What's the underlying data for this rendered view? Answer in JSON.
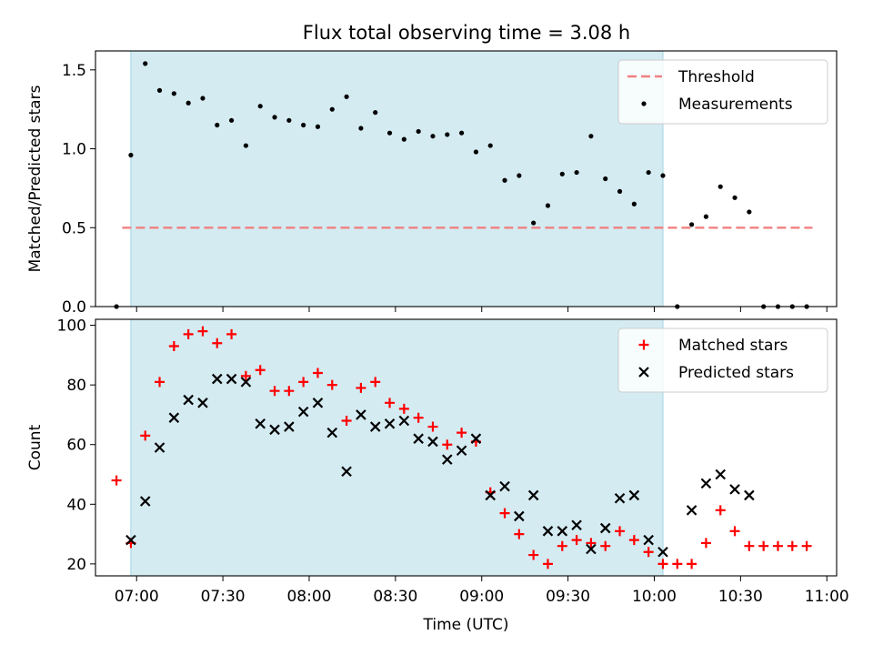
{
  "title": "Flux total observing time = 3.08 h",
  "shade_color": "#add8e6",
  "chart_data": [
    {
      "type": "scatter",
      "ylabel": "Matched/Predicted stars",
      "xlabel": "",
      "x_range": [
        "06:45",
        "11:03"
      ],
      "ylim": [
        0,
        1.62
      ],
      "yticks": [
        "0.0",
        "0.5",
        "1.0",
        "1.5"
      ],
      "shaded_interval": [
        "06:58",
        "10:03"
      ],
      "threshold": {
        "name": "Threshold",
        "value": 0.5,
        "x_start": "06:55",
        "x_end": "10:55",
        "color": "#f08080"
      },
      "legend": {
        "position": "top-right",
        "entries": [
          "Threshold",
          "Measurements"
        ]
      },
      "series": [
        {
          "name": "Measurements",
          "color": "#000000",
          "marker": "dot",
          "x": [
            "06:53",
            "06:58",
            "07:03",
            "07:08",
            "07:13",
            "07:18",
            "07:23",
            "07:28",
            "07:33",
            "07:38",
            "07:43",
            "07:48",
            "07:53",
            "07:58",
            "08:03",
            "08:08",
            "08:13",
            "08:18",
            "08:23",
            "08:28",
            "08:33",
            "08:38",
            "08:43",
            "08:48",
            "08:53",
            "08:58",
            "09:03",
            "09:08",
            "09:13",
            "09:18",
            "09:23",
            "09:28",
            "09:33",
            "09:38",
            "09:43",
            "09:48",
            "09:53",
            "09:58",
            "10:03",
            "10:08",
            "10:13",
            "10:18",
            "10:23",
            "10:28",
            "10:33",
            "10:38",
            "10:43",
            "10:48",
            "10:53"
          ],
          "y": [
            0.0,
            0.96,
            1.54,
            1.37,
            1.35,
            1.29,
            1.32,
            1.15,
            1.18,
            1.02,
            1.27,
            1.2,
            1.18,
            1.15,
            1.14,
            1.25,
            1.33,
            1.13,
            1.23,
            1.1,
            1.06,
            1.11,
            1.08,
            1.09,
            1.1,
            0.98,
            1.02,
            0.8,
            0.83,
            0.53,
            0.64,
            0.84,
            0.85,
            1.08,
            0.81,
            0.73,
            0.65,
            0.85,
            0.83,
            0.0,
            0.52,
            0.57,
            0.76,
            0.69,
            0.6,
            0.0,
            0.0,
            0.0,
            0.0
          ]
        }
      ]
    },
    {
      "type": "scatter",
      "ylabel": "Count",
      "xlabel": "Time (UTC)",
      "x_range": [
        "06:45",
        "11:03"
      ],
      "ylim": [
        16,
        102
      ],
      "yticks": [
        "20",
        "40",
        "60",
        "80",
        "100"
      ],
      "xticks": [
        "07:00",
        "07:30",
        "08:00",
        "08:30",
        "09:00",
        "09:30",
        "10:00",
        "10:30",
        "11:00"
      ],
      "shaded_interval": [
        "06:58",
        "10:03"
      ],
      "legend": {
        "position": "top-right",
        "entries": [
          "Matched stars",
          "Predicted stars"
        ]
      },
      "series": [
        {
          "name": "Matched stars",
          "color": "#ff0000",
          "marker": "plus",
          "x": [
            "06:53",
            "06:58",
            "07:03",
            "07:08",
            "07:13",
            "07:18",
            "07:23",
            "07:28",
            "07:33",
            "07:38",
            "07:43",
            "07:48",
            "07:53",
            "07:58",
            "08:03",
            "08:08",
            "08:13",
            "08:18",
            "08:23",
            "08:28",
            "08:33",
            "08:38",
            "08:43",
            "08:48",
            "08:53",
            "08:58",
            "09:03",
            "09:08",
            "09:13",
            "09:18",
            "09:23",
            "09:28",
            "09:33",
            "09:38",
            "09:43",
            "09:48",
            "09:53",
            "09:58",
            "10:03",
            "10:08",
            "10:13",
            "10:18",
            "10:23",
            "10:28",
            "10:33",
            "10:38",
            "10:43",
            "10:48",
            "10:53"
          ],
          "y": [
            48,
            27,
            63,
            81,
            93,
            97,
            98,
            94,
            97,
            83,
            85,
            78,
            78,
            81,
            84,
            80,
            68,
            79,
            81,
            74,
            72,
            69,
            66,
            60,
            64,
            61,
            44,
            37,
            30,
            23,
            20,
            26,
            28,
            27,
            26,
            31,
            28,
            24,
            20,
            20,
            20,
            27,
            38,
            31,
            26,
            26,
            26,
            26,
            26
          ]
        },
        {
          "name": "Predicted stars",
          "color": "#000000",
          "marker": "x",
          "x": [
            "06:58",
            "07:03",
            "07:08",
            "07:13",
            "07:18",
            "07:23",
            "07:28",
            "07:33",
            "07:38",
            "07:43",
            "07:48",
            "07:53",
            "07:58",
            "08:03",
            "08:08",
            "08:13",
            "08:18",
            "08:23",
            "08:28",
            "08:33",
            "08:38",
            "08:43",
            "08:48",
            "08:53",
            "08:58",
            "09:03",
            "09:08",
            "09:13",
            "09:18",
            "09:23",
            "09:28",
            "09:33",
            "09:38",
            "09:43",
            "09:48",
            "09:53",
            "09:58",
            "10:03",
            "10:13",
            "10:18",
            "10:23",
            "10:28",
            "10:33"
          ],
          "y": [
            28,
            41,
            59,
            69,
            75,
            74,
            82,
            82,
            81,
            67,
            65,
            66,
            71,
            74,
            64,
            51,
            70,
            66,
            67,
            68,
            62,
            61,
            55,
            58,
            62,
            43,
            46,
            36,
            43,
            31,
            31,
            33,
            25,
            32,
            42,
            43,
            28,
            24,
            38,
            47,
            50,
            45,
            43
          ]
        }
      ]
    }
  ]
}
